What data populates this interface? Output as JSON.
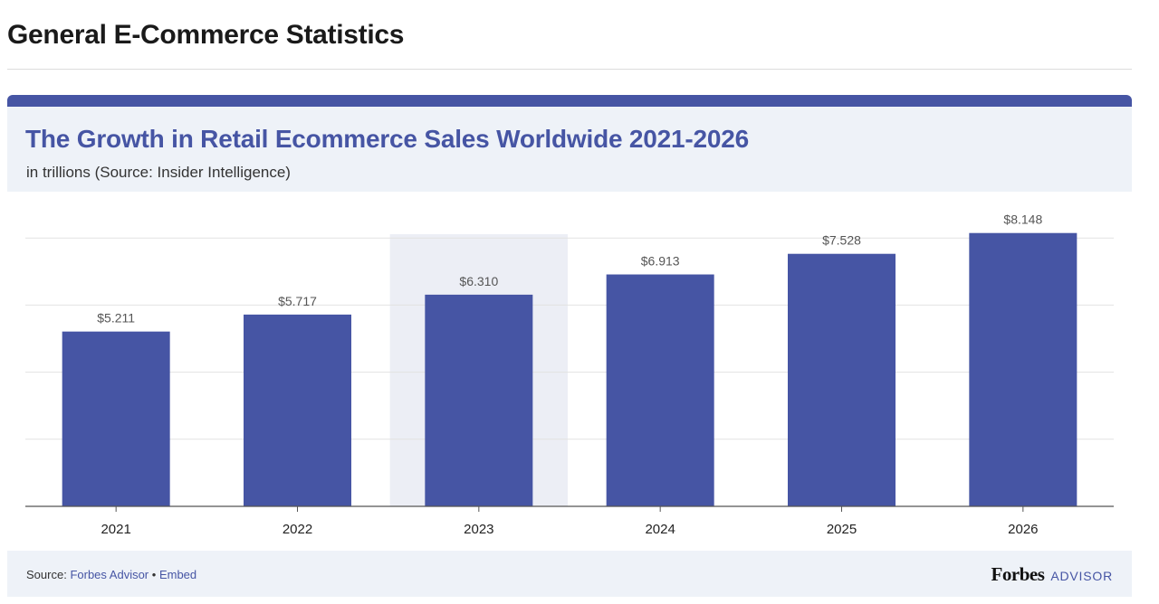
{
  "page": {
    "heading": "General E-Commerce Statistics"
  },
  "card": {
    "footer": {
      "source_label": "Source:",
      "source_link": "Forbes Advisor",
      "separator": "•",
      "embed_link": "Embed",
      "logo_brand": "Forbes",
      "logo_suffix": "ADVISOR"
    }
  },
  "colors": {
    "bar": "#4655a4",
    "highlight_band": "#eceef5",
    "grid": "#e2e2e2",
    "axis": "#555555",
    "value_label": "#555555",
    "tick_label": "#222222"
  },
  "chart_data": {
    "type": "bar",
    "title": "The Growth in Retail Ecommerce Sales Worldwide 2021-2026",
    "subtitle": "in trillions (Source: Insider Intelligence)",
    "categories": [
      "2021",
      "2022",
      "2023",
      "2024",
      "2025",
      "2026"
    ],
    "values": [
      5.211,
      5.717,
      6.31,
      6.913,
      7.528,
      8.148
    ],
    "value_labels": [
      "$5.211",
      "$5.717",
      "$6.310",
      "$6.913",
      "$7.528",
      "$8.148"
    ],
    "highlighted_category": "2023",
    "xlabel": "",
    "ylabel": "",
    "ylim": [
      0,
      8
    ],
    "grid": true,
    "legend": "none"
  }
}
